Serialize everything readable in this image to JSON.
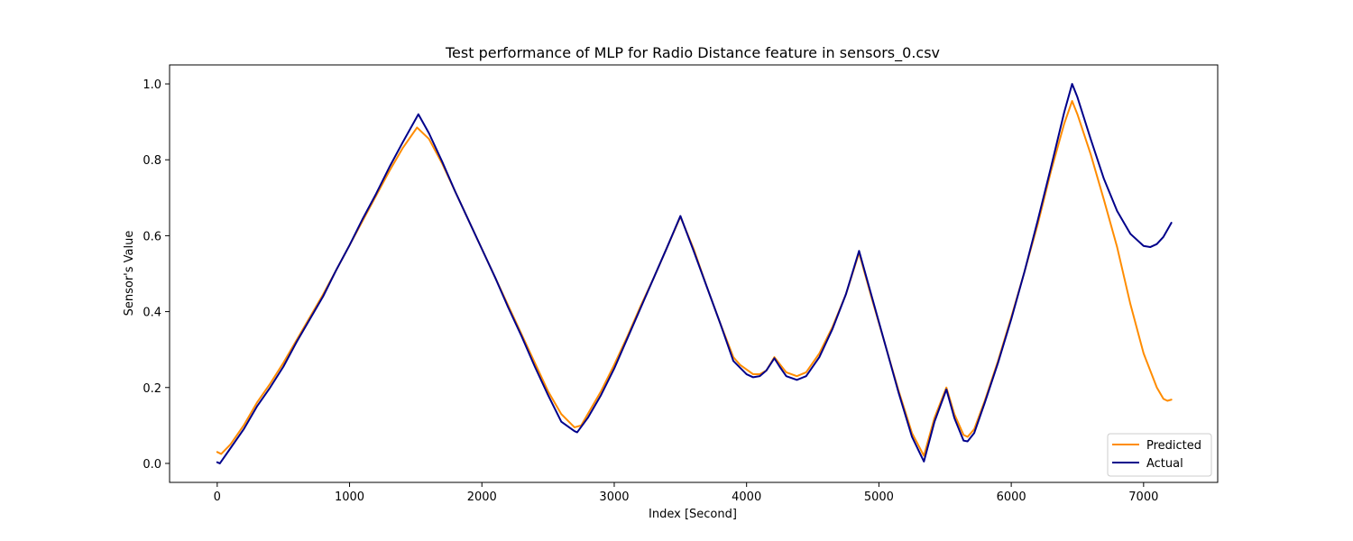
{
  "chart_data": {
    "type": "line",
    "title": "Test performance of MLP for Radio Distance feature in sensors_0.csv",
    "xlabel": "Index [Second]",
    "ylabel": "Sensor's Value",
    "xlim": [
      -360,
      7560
    ],
    "ylim": [
      -0.05,
      1.05
    ],
    "xticks": [
      0,
      1000,
      2000,
      3000,
      4000,
      5000,
      6000,
      7000
    ],
    "xtick_labels": [
      "0",
      "1000",
      "2000",
      "3000",
      "4000",
      "5000",
      "6000",
      "7000"
    ],
    "yticks": [
      0.0,
      0.2,
      0.4,
      0.6,
      0.8,
      1.0
    ],
    "ytick_labels": [
      "0.0",
      "0.2",
      "0.4",
      "0.6",
      "0.8",
      "1.0"
    ],
    "grid": false,
    "legend_position": "bottom-right",
    "series": [
      {
        "name": "Predicted",
        "color": "#ff8c00",
        "points": [
          [
            0,
            0.03
          ],
          [
            30,
            0.025
          ],
          [
            100,
            0.05
          ],
          [
            200,
            0.1
          ],
          [
            300,
            0.16
          ],
          [
            400,
            0.21
          ],
          [
            500,
            0.265
          ],
          [
            600,
            0.325
          ],
          [
            700,
            0.385
          ],
          [
            800,
            0.445
          ],
          [
            900,
            0.51
          ],
          [
            1000,
            0.575
          ],
          [
            1100,
            0.64
          ],
          [
            1200,
            0.705
          ],
          [
            1300,
            0.77
          ],
          [
            1400,
            0.83
          ],
          [
            1510,
            0.885
          ],
          [
            1600,
            0.855
          ],
          [
            1700,
            0.79
          ],
          [
            1800,
            0.715
          ],
          [
            1900,
            0.64
          ],
          [
            2000,
            0.565
          ],
          [
            2100,
            0.49
          ],
          [
            2200,
            0.415
          ],
          [
            2300,
            0.34
          ],
          [
            2400,
            0.265
          ],
          [
            2500,
            0.19
          ],
          [
            2600,
            0.13
          ],
          [
            2700,
            0.095
          ],
          [
            2750,
            0.1
          ],
          [
            2800,
            0.13
          ],
          [
            2900,
            0.19
          ],
          [
            3000,
            0.26
          ],
          [
            3100,
            0.335
          ],
          [
            3200,
            0.415
          ],
          [
            3300,
            0.49
          ],
          [
            3400,
            0.57
          ],
          [
            3500,
            0.65
          ],
          [
            3600,
            0.565
          ],
          [
            3700,
            0.465
          ],
          [
            3800,
            0.37
          ],
          [
            3900,
            0.28
          ],
          [
            3950,
            0.26
          ],
          [
            4050,
            0.235
          ],
          [
            4100,
            0.235
          ],
          [
            4150,
            0.245
          ],
          [
            4210,
            0.28
          ],
          [
            4250,
            0.262
          ],
          [
            4300,
            0.24
          ],
          [
            4380,
            0.23
          ],
          [
            4450,
            0.24
          ],
          [
            4550,
            0.29
          ],
          [
            4650,
            0.36
          ],
          [
            4750,
            0.445
          ],
          [
            4850,
            0.555
          ],
          [
            4950,
            0.43
          ],
          [
            5050,
            0.31
          ],
          [
            5150,
            0.19
          ],
          [
            5250,
            0.08
          ],
          [
            5340,
            0.02
          ],
          [
            5420,
            0.12
          ],
          [
            5510,
            0.2
          ],
          [
            5570,
            0.13
          ],
          [
            5640,
            0.075
          ],
          [
            5670,
            0.07
          ],
          [
            5720,
            0.09
          ],
          [
            5800,
            0.165
          ],
          [
            5900,
            0.27
          ],
          [
            6000,
            0.385
          ],
          [
            6100,
            0.505
          ],
          [
            6200,
            0.63
          ],
          [
            6300,
            0.77
          ],
          [
            6400,
            0.895
          ],
          [
            6460,
            0.955
          ],
          [
            6500,
            0.92
          ],
          [
            6600,
            0.815
          ],
          [
            6700,
            0.695
          ],
          [
            6800,
            0.57
          ],
          [
            6900,
            0.42
          ],
          [
            7000,
            0.29
          ],
          [
            7100,
            0.2
          ],
          [
            7150,
            0.17
          ],
          [
            7180,
            0.165
          ],
          [
            7210,
            0.168
          ]
        ]
      },
      {
        "name": "Actual",
        "color": "#00008b",
        "points": [
          [
            0,
            0.003
          ],
          [
            20,
            0.0
          ],
          [
            100,
            0.04
          ],
          [
            200,
            0.09
          ],
          [
            300,
            0.15
          ],
          [
            400,
            0.2
          ],
          [
            500,
            0.255
          ],
          [
            600,
            0.32
          ],
          [
            700,
            0.38
          ],
          [
            800,
            0.44
          ],
          [
            900,
            0.51
          ],
          [
            1000,
            0.575
          ],
          [
            1100,
            0.645
          ],
          [
            1200,
            0.71
          ],
          [
            1300,
            0.78
          ],
          [
            1400,
            0.845
          ],
          [
            1520,
            0.92
          ],
          [
            1600,
            0.87
          ],
          [
            1700,
            0.795
          ],
          [
            1800,
            0.715
          ],
          [
            1900,
            0.64
          ],
          [
            2000,
            0.565
          ],
          [
            2100,
            0.49
          ],
          [
            2200,
            0.41
          ],
          [
            2300,
            0.335
          ],
          [
            2400,
            0.255
          ],
          [
            2500,
            0.18
          ],
          [
            2600,
            0.11
          ],
          [
            2700,
            0.085
          ],
          [
            2720,
            0.082
          ],
          [
            2800,
            0.12
          ],
          [
            2900,
            0.18
          ],
          [
            3000,
            0.25
          ],
          [
            3100,
            0.33
          ],
          [
            3200,
            0.41
          ],
          [
            3300,
            0.49
          ],
          [
            3400,
            0.57
          ],
          [
            3500,
            0.652
          ],
          [
            3600,
            0.56
          ],
          [
            3700,
            0.465
          ],
          [
            3800,
            0.37
          ],
          [
            3900,
            0.27
          ],
          [
            4000,
            0.235
          ],
          [
            4050,
            0.227
          ],
          [
            4100,
            0.23
          ],
          [
            4150,
            0.245
          ],
          [
            4210,
            0.277
          ],
          [
            4250,
            0.255
          ],
          [
            4300,
            0.23
          ],
          [
            4380,
            0.22
          ],
          [
            4450,
            0.23
          ],
          [
            4550,
            0.28
          ],
          [
            4650,
            0.355
          ],
          [
            4750,
            0.445
          ],
          [
            4850,
            0.56
          ],
          [
            4950,
            0.435
          ],
          [
            5050,
            0.31
          ],
          [
            5150,
            0.185
          ],
          [
            5250,
            0.07
          ],
          [
            5340,
            0.005
          ],
          [
            5420,
            0.11
          ],
          [
            5510,
            0.195
          ],
          [
            5570,
            0.12
          ],
          [
            5640,
            0.06
          ],
          [
            5670,
            0.058
          ],
          [
            5720,
            0.08
          ],
          [
            5800,
            0.16
          ],
          [
            5900,
            0.265
          ],
          [
            6000,
            0.38
          ],
          [
            6100,
            0.505
          ],
          [
            6200,
            0.64
          ],
          [
            6300,
            0.78
          ],
          [
            6400,
            0.925
          ],
          [
            6460,
            1.0
          ],
          [
            6500,
            0.965
          ],
          [
            6600,
            0.855
          ],
          [
            6700,
            0.75
          ],
          [
            6800,
            0.665
          ],
          [
            6900,
            0.605
          ],
          [
            7000,
            0.573
          ],
          [
            7050,
            0.57
          ],
          [
            7100,
            0.578
          ],
          [
            7150,
            0.597
          ],
          [
            7210,
            0.634
          ]
        ]
      }
    ]
  }
}
